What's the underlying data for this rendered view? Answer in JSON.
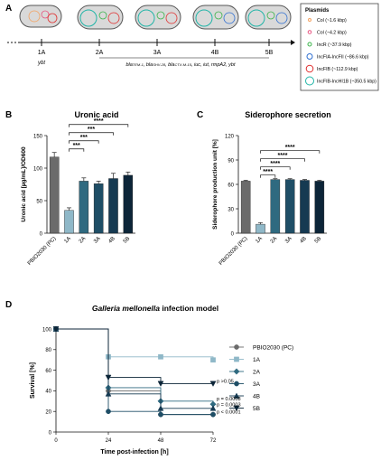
{
  "panels": {
    "a": "A",
    "b": "B",
    "c": "C",
    "d": "D"
  },
  "timeline": {
    "points": [
      "1A",
      "2A",
      "3A",
      "4B",
      "5B"
    ],
    "start_note": "ybt",
    "gene_note_html": "bla<tspan font-size='4'>TEM-1</tspan>, bla<tspan font-size='4'>SHV-28</tspan>, bla<tspan font-size='4'>CTX-M-15</tspan>, iuc, iut, rmpA2, ybt"
  },
  "legend_plasmid": {
    "title": "Plasmids",
    "items": [
      {
        "label": "Col (~1.6 kbp)",
        "color": "#f4a261"
      },
      {
        "label": "Col (~4.2 kbp)",
        "color": "#e75480"
      },
      {
        "label": "IncR (~37.9 kbp)",
        "color": "#3cb44b"
      },
      {
        "label": "IncFIA-IncFII (~86.6 kbp)",
        "color": "#2f6fd1"
      },
      {
        "label": "IncFIB (~112.9 kbp)",
        "color": "#e03030"
      },
      {
        "label": "IncFIB-IncHI1B (~350.5 kbp)",
        "color": "#22b5a8"
      }
    ]
  },
  "chart_data": [
    {
      "type": "bar",
      "title": "Uronic acid",
      "ylabel": "Uronic acid [µg/mL]/OD600",
      "categories": [
        "PBIO2030 (PC)",
        "1A",
        "2A",
        "3A",
        "4B",
        "5B"
      ],
      "values": [
        117,
        35,
        80,
        76,
        84,
        89
      ],
      "errors": [
        7,
        4,
        5,
        4,
        8,
        5
      ],
      "ylim": [
        0,
        150
      ],
      "yticks": [
        0,
        50,
        100,
        150
      ],
      "significance": [
        "***",
        "***",
        "***",
        "****"
      ],
      "colors": [
        "#6b6b6b",
        "#8fb8c8",
        "#2f6a80",
        "#1f4e66",
        "#163a52",
        "#0c2538"
      ]
    },
    {
      "type": "bar",
      "title": "Siderophore secretion",
      "ylabel": "Siderophore production unit [%]",
      "categories": [
        "PBIO2030 (PC)",
        "1A",
        "2A",
        "3A",
        "4B",
        "5B"
      ],
      "values": [
        64,
        11,
        66,
        66,
        65,
        64
      ],
      "errors": [
        1,
        2,
        1,
        1,
        1,
        1
      ],
      "ylim": [
        0,
        120
      ],
      "yticks": [
        0,
        30,
        60,
        90,
        120
      ],
      "significance": [
        "****",
        "****",
        "****",
        "****"
      ],
      "colors": [
        "#6b6b6b",
        "#8fb8c8",
        "#2f6a80",
        "#1f4e66",
        "#163a52",
        "#0c2538"
      ]
    },
    {
      "type": "line",
      "title": "Galleria mellonella infection model",
      "xlabel": "Time post-infection [h]",
      "ylabel": "Survival [%]",
      "x": [
        0,
        24,
        48,
        72
      ],
      "xlim": [
        0,
        72
      ],
      "ylim": [
        0,
        100
      ],
      "yticks": [
        0,
        20,
        40,
        60,
        80,
        100
      ],
      "series": [
        {
          "name": "PBIO2030 (PC)",
          "values": [
            100,
            40,
            17,
            17
          ],
          "marker": "circle",
          "color": "#6b6b6b"
        },
        {
          "name": "1A",
          "values": [
            100,
            73,
            73,
            70
          ],
          "marker": "square",
          "color": "#8fb8c8"
        },
        {
          "name": "2A",
          "values": [
            100,
            43,
            30,
            27
          ],
          "marker": "diamond",
          "color": "#2f6a80"
        },
        {
          "name": "3A",
          "values": [
            100,
            20,
            17,
            17
          ],
          "marker": "circle",
          "color": "#1f4e66"
        },
        {
          "name": "4B",
          "values": [
            100,
            37,
            23,
            23
          ],
          "marker": "triangle",
          "color": "#163a52"
        },
        {
          "name": "5B",
          "values": [
            100,
            53,
            47,
            47
          ],
          "marker": "triangle-down",
          "color": "#0c2538"
        }
      ],
      "annotations": [
        "p >0.05",
        "p = 0.0008",
        "p = 0.0003",
        "p < 0.0001"
      ]
    }
  ]
}
